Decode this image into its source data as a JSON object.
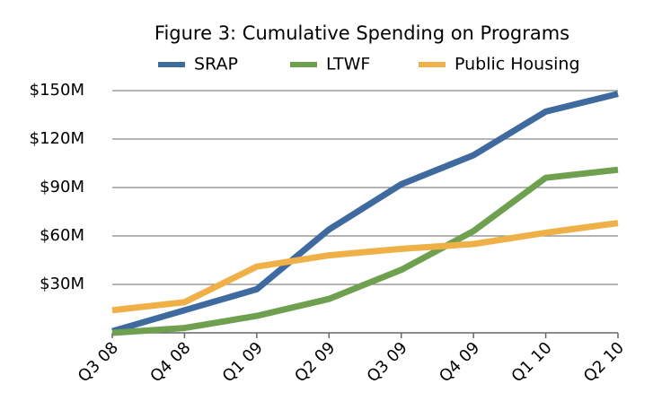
{
  "chart_data": {
    "type": "line",
    "title": "Figure 3: Cumulative Spending on Programs",
    "categories": [
      "Q3 08",
      "Q4 08",
      "Q1 09",
      "Q2 09",
      "Q3 09",
      "Q4 09",
      "Q1 10",
      "Q2 10"
    ],
    "series": [
      {
        "name": "SRAP",
        "color": "#3f6aa0",
        "values": [
          1,
          14,
          27,
          64,
          92,
          110,
          137,
          148
        ]
      },
      {
        "name": "LTWF",
        "color": "#6ea050",
        "values": [
          0,
          3,
          10.5,
          21,
          39,
          63,
          96,
          101
        ]
      },
      {
        "name": "Public Housing",
        "color": "#f0b048",
        "values": [
          14,
          19,
          41,
          48,
          52,
          55,
          62,
          68
        ]
      }
    ],
    "ylim": [
      0,
      150
    ],
    "yticks": [
      {
        "value": 30,
        "label": "$30M"
      },
      {
        "value": 60,
        "label": "$60M"
      },
      {
        "value": 90,
        "label": "$90M"
      },
      {
        "value": 120,
        "label": "$120M"
      },
      {
        "value": 150,
        "label": "$150M"
      }
    ],
    "grid": true,
    "legend": "top"
  }
}
